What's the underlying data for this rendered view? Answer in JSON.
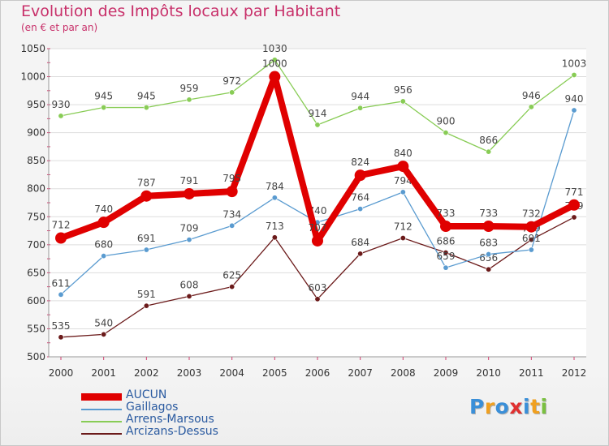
{
  "title": "Evolution des Impôts locaux par Habitant",
  "subtitle": "(en € et par an)",
  "chart_data": {
    "type": "line",
    "x": [
      "2000",
      "2001",
      "2002",
      "2003",
      "2004",
      "2005",
      "2006",
      "2007",
      "2008",
      "2009",
      "2010",
      "2011",
      "2012"
    ],
    "ylim": [
      500,
      1050
    ],
    "yticks": [
      500,
      550,
      600,
      650,
      700,
      750,
      800,
      850,
      900,
      950,
      1000,
      1050
    ],
    "series": [
      {
        "name": "AUCUN",
        "color": "#e00000",
        "values": [
          712,
          740,
          787,
          791,
          795,
          1000,
          707,
          824,
          840,
          733,
          733,
          732,
          771
        ]
      },
      {
        "name": "Gaillagos",
        "color": "#5a9bd0",
        "values": [
          611,
          680,
          691,
          709,
          734,
          784,
          740,
          764,
          794,
          659,
          683,
          691,
          940
        ]
      },
      {
        "name": "Arrens-Marsous",
        "color": "#88cc55",
        "values": [
          930,
          945,
          945,
          959,
          972,
          1030,
          914,
          944,
          956,
          900,
          866,
          946,
          1003
        ]
      },
      {
        "name": "Arcizans-Dessus",
        "color": "#6b1a1a",
        "values": [
          535,
          540,
          591,
          608,
          625,
          713,
          603,
          684,
          712,
          686,
          656,
          709,
          749
        ]
      }
    ]
  },
  "logo": {
    "letters": [
      "P",
      "r",
      "o",
      "x",
      "i",
      "t",
      "i"
    ],
    "colors": [
      "#3a8fd8",
      "#f0a020",
      "#3a8fd8",
      "#e03030",
      "#3a8fd8",
      "#f0a020",
      "#7ac040"
    ]
  }
}
